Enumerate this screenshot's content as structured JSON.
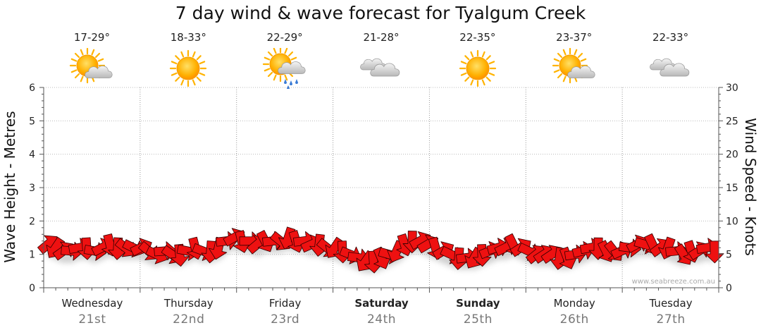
{
  "title": "7 day wind & wave forecast for Tyalgum Creek",
  "watermark": "www.seabreeze.com.au",
  "days": [
    {
      "day": "Wednesday",
      "date": "21st",
      "temp": "17-29°",
      "weather": "partly-cloudy-icon",
      "weekend": false
    },
    {
      "day": "Thursday",
      "date": "22nd",
      "temp": "18-33°",
      "weather": "sunny-icon",
      "weekend": false
    },
    {
      "day": "Friday",
      "date": "23rd",
      "temp": "22-29°",
      "weather": "showers-icon",
      "weekend": false
    },
    {
      "day": "Saturday",
      "date": "24th",
      "temp": "21-28°",
      "weather": "cloudy-icon",
      "weekend": true
    },
    {
      "day": "Sunday",
      "date": "25th",
      "temp": "22-35°",
      "weather": "sunny-icon",
      "weekend": true
    },
    {
      "day": "Monday",
      "date": "26th",
      "temp": "23-37°",
      "weather": "partly-cloudy-icon",
      "weekend": false
    },
    {
      "day": "Tuesday",
      "date": "27th",
      "temp": "22-33°",
      "weather": "cloudy-icon",
      "weekend": false
    }
  ],
  "chart_data": {
    "type": "line",
    "title": "7 day wind & wave forecast for Tyalgum Creek",
    "ylabel": "Wave Height - Metres",
    "y2label": "Wind Speed - Knots",
    "ylim": [
      0,
      6
    ],
    "y2lim": [
      0,
      30
    ],
    "yticks": [
      "0",
      "1",
      "2",
      "3",
      "4",
      "5",
      "6"
    ],
    "y2ticks": [
      "0",
      "5",
      "10",
      "15",
      "20",
      "25",
      "30"
    ],
    "grid": true,
    "series": [
      {
        "type": "arrows",
        "unit": "knots",
        "values": [
          6.5,
          6,
          5.5,
          5.5,
          6,
          6,
          5.5,
          6,
          6.5,
          6,
          6,
          6,
          6,
          5.5,
          5,
          5.5,
          5,
          5,
          5.5,
          6,
          5.5,
          5.5,
          6,
          7,
          7.5,
          7,
          7,
          6.5,
          7,
          7,
          7,
          7.5,
          7,
          7,
          6.5,
          6.5,
          6,
          6,
          5.5,
          5,
          4.5,
          4,
          4,
          4.5,
          5,
          5.5,
          6.5,
          7,
          7,
          6.5,
          6,
          5.5,
          5,
          4.5,
          4.5,
          4.5,
          5,
          5.5,
          6,
          6,
          6.5,
          6,
          5.5,
          5,
          5,
          5,
          4.5,
          4.5,
          5,
          5.5,
          6,
          6,
          5.5,
          5.5,
          5.5,
          6,
          6.5,
          6.5,
          6.5,
          6,
          6,
          5.5,
          5,
          5.5,
          5.5,
          6,
          5.5
        ]
      }
    ]
  }
}
